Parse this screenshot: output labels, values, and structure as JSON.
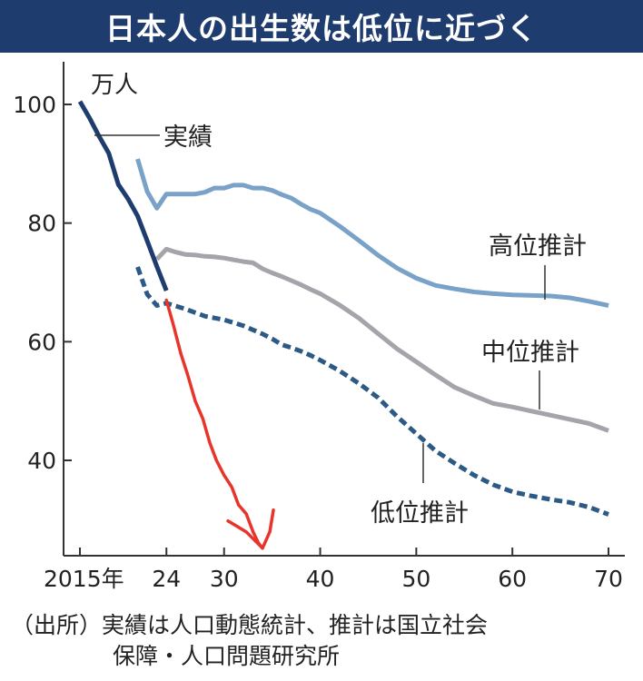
{
  "title": "日本人の出生数は低位に近づく",
  "source": {
    "line1": "（出所）実績は人口動態統計、推計は国立社会",
    "line2": "保障・人口問題研究所"
  },
  "chart_data": {
    "type": "line",
    "title": "日本人の出生数は低位に近づく",
    "unit": "万人",
    "xlim": [
      2015,
      2070
    ],
    "ylim": [
      25,
      105
    ],
    "yticks": [
      40,
      60,
      80,
      100
    ],
    "xticks": [
      {
        "value": 2015,
        "label": "2015年"
      },
      {
        "value": 2024,
        "label": "24"
      },
      {
        "value": 2030,
        "label": "30"
      },
      {
        "value": 2040,
        "label": "40"
      },
      {
        "value": 2050,
        "label": "50"
      },
      {
        "value": 2060,
        "label": "60"
      },
      {
        "value": 2070,
        "label": "70"
      }
    ],
    "series": [
      {
        "name": "実績",
        "color": "#1f3c6e",
        "style": "solid",
        "x": [
          2015,
          2016,
          2017,
          2018,
          2019,
          2020,
          2021,
          2022,
          2023,
          2024
        ],
        "y": [
          100.5,
          97.7,
          94.6,
          91.8,
          86.5,
          84.1,
          81.2,
          77.0,
          72.7,
          68.6
        ]
      },
      {
        "name": "高位推計",
        "color": "#7aa2c8",
        "style": "solid",
        "x": [
          2021,
          2022,
          2023,
          2024,
          2025,
          2026,
          2027,
          2028,
          2029,
          2030,
          2031,
          2032,
          2033,
          2034,
          2035,
          2036,
          2037,
          2038,
          2039,
          2040,
          2042,
          2044,
          2046,
          2048,
          2050,
          2052,
          2054,
          2056,
          2058,
          2060,
          2062,
          2064,
          2066,
          2068,
          2070
        ],
        "y": [
          90.8,
          85.3,
          82.5,
          84.9,
          84.9,
          84.9,
          84.9,
          85.2,
          85.9,
          85.9,
          86.4,
          86.4,
          85.9,
          85.9,
          85.5,
          84.8,
          84.2,
          83.2,
          82.3,
          81.7,
          79.5,
          77.1,
          74.6,
          72.4,
          70.7,
          69.5,
          68.9,
          68.4,
          68.1,
          67.9,
          67.8,
          67.7,
          67.4,
          66.8,
          66.1
        ]
      },
      {
        "name": "中位推計",
        "color": "#a4a4ab",
        "style": "solid",
        "x": [
          2023,
          2024,
          2025,
          2026,
          2027,
          2028,
          2029,
          2030,
          2031,
          2032,
          2033,
          2034,
          2035,
          2036,
          2037,
          2038,
          2039,
          2040,
          2042,
          2044,
          2046,
          2048,
          2050,
          2052,
          2054,
          2056,
          2058,
          2060,
          2062,
          2064,
          2066,
          2068,
          2070
        ],
        "y": [
          73.9,
          75.6,
          75.1,
          74.7,
          74.6,
          74.4,
          74.3,
          74.1,
          73.8,
          73.5,
          73.3,
          72.3,
          71.6,
          71.0,
          70.3,
          69.6,
          68.8,
          68.1,
          66.2,
          64.0,
          61.4,
          58.8,
          56.6,
          54.4,
          52.3,
          50.9,
          49.6,
          49.0,
          48.3,
          47.6,
          46.9,
          46.2,
          45.0
        ]
      },
      {
        "name": "低位推計",
        "color": "#2c5a85",
        "style": "dashed",
        "x": [
          2021,
          2022,
          2023,
          2024,
          2025,
          2026,
          2027,
          2028,
          2029,
          2030,
          2031,
          2032,
          2033,
          2034,
          2035,
          2036,
          2037,
          2038,
          2039,
          2040,
          2042,
          2044,
          2046,
          2048,
          2050,
          2052,
          2054,
          2056,
          2058,
          2060,
          2062,
          2064,
          2066,
          2068,
          2070
        ],
        "y": [
          72.6,
          68.0,
          66.1,
          66.5,
          66.0,
          65.5,
          64.9,
          64.3,
          64.0,
          63.7,
          63.2,
          62.7,
          62.0,
          61.3,
          60.5,
          59.5,
          59.0,
          58.4,
          57.7,
          56.9,
          55.1,
          53.0,
          50.6,
          47.4,
          44.5,
          41.6,
          39.5,
          37.5,
          35.9,
          34.7,
          34.0,
          33.4,
          32.9,
          32.1,
          30.9
        ]
      }
    ],
    "annotations": [
      {
        "type": "hand-drawn-arrow",
        "color": "#e8352a",
        "x": [
          2024.0,
          2024.7,
          2025.5,
          2026.2,
          2027.0,
          2027.8,
          2028.5,
          2029.2,
          2030.0,
          2030.8,
          2031.5,
          2032.3,
          2033.0,
          2033.6,
          2034.0
        ],
        "y": [
          67.0,
          63.0,
          58.0,
          54.5,
          50.0,
          47.0,
          43.0,
          40.0,
          37.5,
          35.5,
          32.5,
          31.0,
          28.0,
          26.0,
          25.2
        ]
      }
    ]
  }
}
